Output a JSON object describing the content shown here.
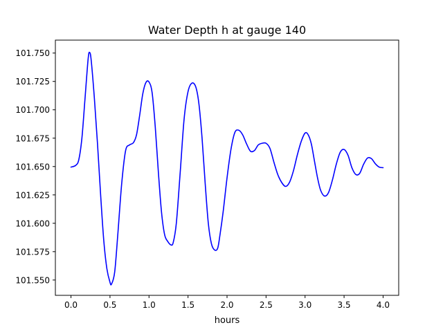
{
  "chart_data": {
    "type": "line",
    "title": "Water Depth h at gauge 140",
    "xlabel": "hours",
    "ylabel": "",
    "xlim": [
      -0.2,
      4.2
    ],
    "ylim": [
      101.5365,
      101.7614
    ],
    "xticks": [
      0.0,
      0.5,
      1.0,
      1.5,
      2.0,
      2.5,
      3.0,
      3.5,
      4.0
    ],
    "xtick_labels": [
      "0.0",
      "0.5",
      "1.0",
      "1.5",
      "2.0",
      "2.5",
      "3.0",
      "3.5",
      "4.0"
    ],
    "yticks": [
      101.55,
      101.575,
      101.6,
      101.625,
      101.65,
      101.675,
      101.7,
      101.725,
      101.75
    ],
    "ytick_labels": [
      "101.550",
      "101.575",
      "101.600",
      "101.625",
      "101.650",
      "101.675",
      "101.700",
      "101.725",
      "101.750"
    ],
    "grid": false,
    "series": [
      {
        "color": "#0000ff",
        "x": [
          0.0,
          0.06,
          0.1,
          0.14,
          0.18,
          0.22,
          0.24,
          0.26,
          0.3,
          0.34,
          0.38,
          0.42,
          0.46,
          0.5,
          0.52,
          0.56,
          0.6,
          0.65,
          0.7,
          0.75,
          0.8,
          0.84,
          0.88,
          0.92,
          0.96,
          1.0,
          1.04,
          1.08,
          1.12,
          1.16,
          1.2,
          1.24,
          1.28,
          1.31,
          1.35,
          1.4,
          1.45,
          1.5,
          1.55,
          1.6,
          1.64,
          1.68,
          1.72,
          1.76,
          1.8,
          1.84,
          1.88,
          1.91,
          1.95,
          2.0,
          2.05,
          2.1,
          2.15,
          2.2,
          2.25,
          2.3,
          2.35,
          2.4,
          2.45,
          2.5,
          2.55,
          2.6,
          2.65,
          2.7,
          2.75,
          2.8,
          2.85,
          2.9,
          2.95,
          3.0,
          3.04,
          3.08,
          3.12,
          3.16,
          3.2,
          3.25,
          3.3,
          3.35,
          3.4,
          3.45,
          3.5,
          3.55,
          3.6,
          3.65,
          3.7,
          3.75,
          3.8,
          3.85,
          3.9,
          3.95,
          4.0
        ],
        "y": [
          101.6495,
          101.651,
          101.656,
          101.675,
          101.71,
          101.745,
          101.7505,
          101.743,
          101.71,
          101.67,
          101.625,
          101.585,
          101.56,
          101.548,
          101.5465,
          101.557,
          101.59,
          101.635,
          101.664,
          101.669,
          101.671,
          101.678,
          101.695,
          101.714,
          101.724,
          101.7245,
          101.715,
          101.685,
          101.645,
          101.61,
          101.59,
          101.584,
          101.581,
          101.583,
          101.6,
          101.645,
          101.692,
          101.716,
          101.7235,
          101.72,
          101.705,
          101.675,
          101.635,
          101.6,
          101.582,
          101.5765,
          101.578,
          101.59,
          101.61,
          101.64,
          101.665,
          101.68,
          101.682,
          101.678,
          101.67,
          101.6635,
          101.664,
          101.669,
          101.6705,
          101.6705,
          101.666,
          101.654,
          101.643,
          101.636,
          101.6325,
          101.636,
          101.646,
          101.66,
          101.672,
          101.6795,
          101.678,
          101.67,
          101.655,
          101.64,
          101.629,
          101.624,
          101.627,
          101.638,
          101.652,
          101.6625,
          101.665,
          101.66,
          101.649,
          101.643,
          101.644,
          101.652,
          101.6575,
          101.657,
          101.6525,
          101.6495,
          101.649
        ]
      }
    ]
  }
}
